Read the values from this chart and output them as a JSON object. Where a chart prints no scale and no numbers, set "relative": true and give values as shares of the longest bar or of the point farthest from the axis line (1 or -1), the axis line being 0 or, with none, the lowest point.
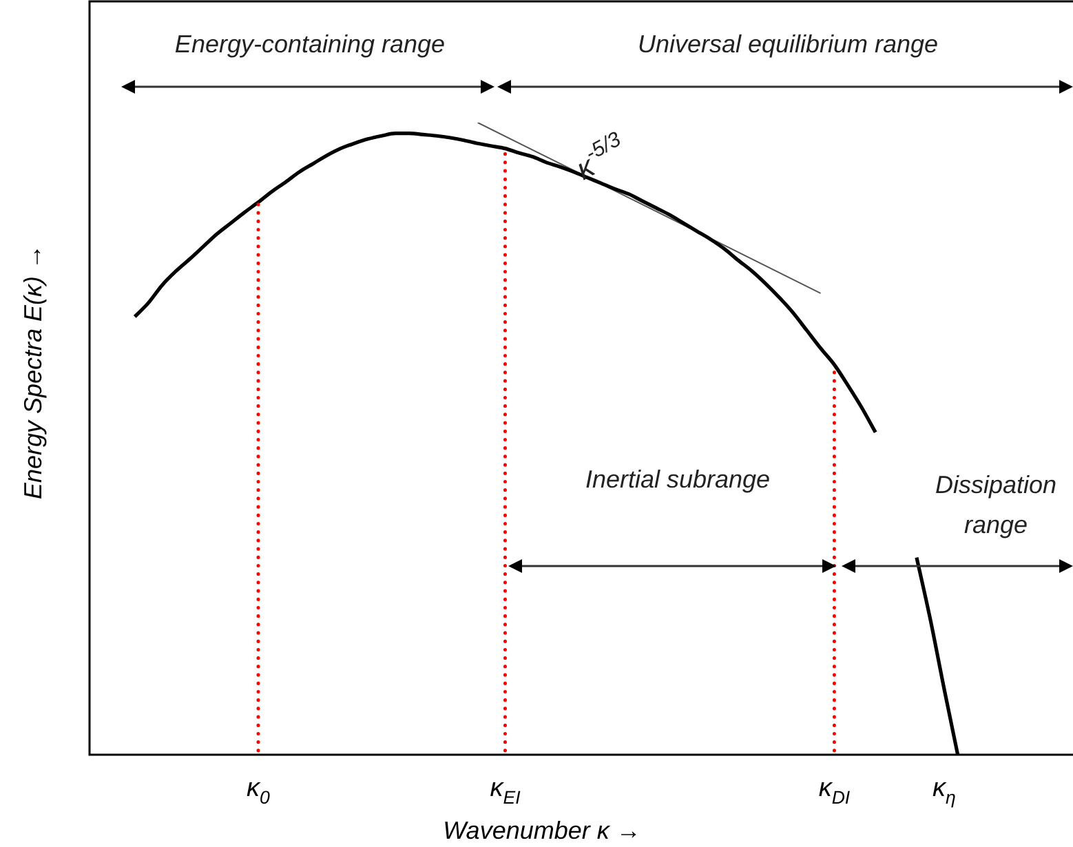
{
  "chart_data": {
    "type": "line",
    "relative": true,
    "xlabel": "Wavenumber κ →",
    "ylabel": "Energy Spectra E(κ) →",
    "categories": [
      null,
      null,
      null,
      null,
      null,
      null,
      null,
      null,
      null,
      null,
      null,
      null,
      "κ$_{0}$",
      null,
      null,
      null,
      null,
      null,
      null,
      null,
      null,
      null,
      null,
      null,
      null,
      null,
      null,
      null,
      null,
      null,
      "κ$_{EI}$",
      null,
      null,
      null,
      null,
      null,
      null,
      null,
      null,
      null,
      null,
      null,
      null,
      null,
      null,
      null,
      null,
      null,
      null,
      null,
      null,
      null,
      null,
      null,
      "κ$_{DI}$",
      null,
      null,
      null,
      null,
      null,
      null,
      null,
      "κ$_{η}$",
      null,
      null,
      null,
      null,
      null,
      null,
      null,
      null,
      null
    ],
    "series": [
      {
        "color": "#000000",
        "values": [
          null,
          null,
          null,
          0.693,
          0.715,
          0.743,
          0.765,
          0.784,
          0.804,
          0.824,
          0.841,
          0.858,
          0.874,
          0.891,
          0.906,
          0.922,
          0.935,
          0.948,
          0.959,
          0.967,
          0.974,
          0.979,
          0.983,
          0.983,
          0.981,
          0.979,
          0.976,
          0.972,
          0.967,
          0.963,
          0.959,
          0.952,
          0.946,
          0.937,
          0.93,
          0.922,
          0.913,
          0.904,
          0.895,
          0.887,
          0.876,
          0.865,
          0.854,
          0.841,
          0.828,
          0.815,
          0.8,
          0.782,
          0.765,
          0.745,
          0.723,
          0.699,
          0.671,
          0.643,
          0.617,
          0.584,
          0.549,
          0.51,
          null,
          null,
          0.312,
          0.214,
          0.105,
          0,
          null,
          null,
          null,
          null,
          null,
          null,
          null,
          null
        ]
      },
      {
        "color": "#555555",
        "values": [
          null,
          null,
          null,
          null,
          null,
          null,
          null,
          null,
          null,
          null,
          null,
          null,
          null,
          null,
          null,
          null,
          null,
          null,
          null,
          null,
          null,
          null,
          null,
          null,
          null,
          null,
          null,
          null,
          1.0,
          null,
          null,
          null,
          null,
          null,
          null,
          null,
          null,
          null,
          null,
          null,
          null,
          null,
          null,
          null,
          null,
          null,
          null,
          null,
          null,
          null,
          null,
          null,
          null,
          0.73,
          null,
          null,
          null,
          null,
          null,
          null,
          null,
          null,
          null,
          null,
          null,
          null,
          null,
          null,
          null,
          null,
          null,
          null
        ]
      }
    ],
    "ref_lines": [
      {
        "axis": "x",
        "value": "κ$_{0}$",
        "color": "#ff0000",
        "line_style": "dotted"
      },
      {
        "axis": "x",
        "value": "κ$_{EI}$",
        "color": "#ff0000",
        "line_style": "dotted"
      },
      {
        "axis": "x",
        "value": "κ$_{DI}$",
        "color": "#ff0000",
        "line_style": "dotted"
      }
    ],
    "annotations": [
      "Energy-containing range",
      "Universal equilibrium range",
      "κ$^{-5/3}$",
      "Inertial subrange",
      "Dissipation range"
    ],
    "grid": false,
    "legend": false,
    "marker": "none",
    "line_style": "solid"
  }
}
